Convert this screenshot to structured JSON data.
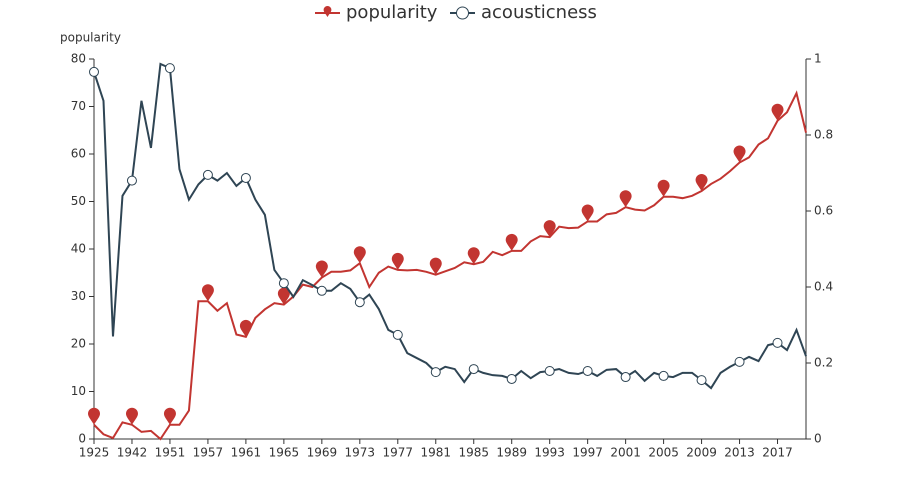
{
  "chart_data": {
    "type": "line",
    "categories": [
      "1925",
      null,
      null,
      null,
      "1942",
      null,
      null,
      null,
      "1951",
      null,
      null,
      null,
      "1957",
      null,
      null,
      null,
      "1961",
      null,
      null,
      null,
      "1965",
      null,
      null,
      null,
      "1969",
      null,
      null,
      null,
      "1973",
      null,
      null,
      null,
      "1977",
      null,
      null,
      null,
      "1981",
      null,
      null,
      null,
      "1985",
      null,
      null,
      null,
      "1989",
      null,
      null,
      null,
      "1993",
      null,
      null,
      null,
      "1997",
      null,
      null,
      null,
      "2001",
      null,
      null,
      null,
      "2005",
      null,
      null,
      null,
      "2009",
      null,
      null,
      null,
      "2013",
      null,
      null,
      null,
      "2017",
      null,
      null,
      null
    ],
    "y_label": "popularity",
    "ylim": [
      0,
      80
    ],
    "yticks": [
      0,
      10,
      20,
      30,
      40,
      50,
      60,
      70,
      80
    ],
    "y2lim": [
      0,
      1
    ],
    "y2ticks": [
      0,
      0.2,
      0.4,
      0.6,
      0.8,
      1
    ],
    "series": [
      {
        "name": "popularity",
        "color": "#c23531",
        "values": [
          3,
          1,
          0.2,
          3.5,
          3,
          1.5,
          1.7,
          0,
          3,
          3,
          6,
          29,
          29,
          27,
          28.6,
          22,
          21.5,
          25.5,
          27.3,
          28.6,
          28.3,
          30,
          32.5,
          32,
          34,
          35.2,
          35.2,
          35.5,
          37,
          32,
          35,
          36.3,
          35.6,
          35.5,
          35.6,
          35.2,
          34.6,
          35.3,
          36,
          37.2,
          36.8,
          37.3,
          39.4,
          38.7,
          39.6,
          39.6,
          41.6,
          42.7,
          42.5,
          44.7,
          44.4,
          44.5,
          45.8,
          45.8,
          47.3,
          47.6,
          48.8,
          48.3,
          48.1,
          49.2,
          51,
          51,
          50.7,
          51.2,
          52.2,
          53.7,
          54.8,
          56.4,
          58.2,
          59.3,
          62,
          63.3,
          67,
          68.8,
          72.8,
          64.5
        ]
      },
      {
        "name": "acousticness",
        "color": "#2f4554",
        "axis": "y2",
        "values": [
          0.966,
          0.89,
          0.27,
          0.64,
          0.68,
          0.89,
          0.766,
          0.987,
          0.976,
          0.71,
          0.63,
          0.67,
          0.695,
          0.68,
          0.7,
          0.666,
          0.687,
          0.63,
          0.59,
          0.445,
          0.41,
          0.374,
          0.418,
          0.405,
          0.39,
          0.39,
          0.41,
          0.395,
          0.36,
          0.38,
          0.342,
          0.287,
          0.274,
          0.226,
          0.213,
          0.2,
          0.176,
          0.19,
          0.184,
          0.15,
          0.184,
          0.174,
          0.168,
          0.166,
          0.158,
          0.179,
          0.16,
          0.176,
          0.179,
          0.184,
          0.174,
          0.171,
          0.179,
          0.166,
          0.182,
          0.184,
          0.163,
          0.179,
          0.153,
          0.174,
          0.166,
          0.163,
          0.174,
          0.174,
          0.155,
          0.134,
          0.174,
          0.19,
          0.203,
          0.216,
          0.205,
          0.247,
          0.253,
          0.234,
          0.287,
          0.218
        ]
      }
    ]
  }
}
